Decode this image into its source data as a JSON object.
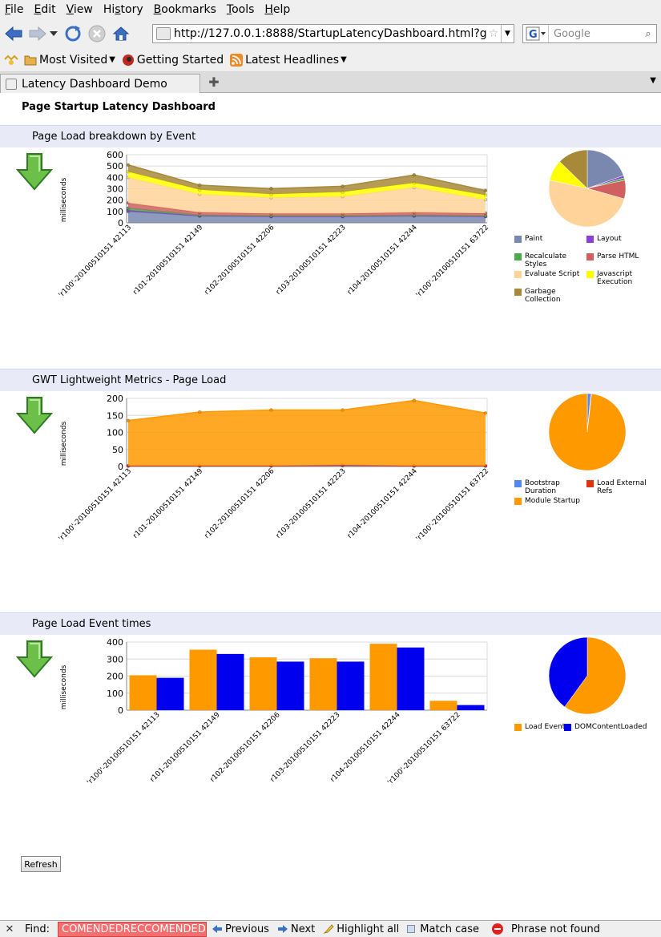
{
  "browser": {
    "menu": [
      "File",
      "Edit",
      "View",
      "History",
      "Bookmarks",
      "Tools",
      "Help"
    ],
    "menu_access_keys": [
      "F",
      "E",
      "V",
      "s",
      "B",
      "T",
      "H"
    ],
    "url": "http://127.0.0.1:8888/StartupLatencyDashboard.html?gwt.co",
    "search_placeholder": "Google",
    "bookmarks": [
      "Most Visited",
      "Getting Started",
      "Latest Headlines"
    ],
    "tab_title": "Latency Dashboard Demo"
  },
  "page": {
    "title": "Page Startup Latency Dashboard",
    "refresh_label": "Refresh"
  },
  "colors": {
    "section_header_bg": "#e8eaf8",
    "arrow_green": "#4caa3a",
    "orange": "#ff9900",
    "blue": "#0000ee"
  },
  "sections": [
    {
      "title": "Page Load breakdown by Event",
      "ylabel": "milliseconds"
    },
    {
      "title": "GWT Lightweight Metrics - Page Load",
      "ylabel": "milliseconds"
    },
    {
      "title": "Page Load Event times",
      "ylabel": "milliseconds"
    }
  ],
  "chart_data": [
    {
      "type": "area",
      "categories": [
        "'r100'-20100510151 42113",
        "r101-20100510151 42149",
        "r102-20100510151 42206",
        "r103-20100510151 42223",
        "r104-20100510151 42244",
        "'r100'-20100510151 63722"
      ],
      "ylim": [
        0,
        600
      ],
      "yticks": [
        0,
        100,
        200,
        300,
        400,
        500,
        600
      ],
      "ylabel": "milliseconds",
      "series": [
        {
          "name": "Paint",
          "color": "#7a88b0",
          "values": [
            100,
            60,
            55,
            55,
            60,
            55
          ]
        },
        {
          "name": "Layout",
          "color": "#8a3fd6",
          "values": [
            10,
            2,
            2,
            2,
            2,
            2
          ]
        },
        {
          "name": "Recalculate Styles",
          "color": "#4caa4c",
          "values": [
            20,
            5,
            5,
            5,
            5,
            5
          ]
        },
        {
          "name": "Parse HTML",
          "color": "#d06060",
          "values": [
            45,
            25,
            20,
            20,
            25,
            22
          ]
        },
        {
          "name": "Evaluate Script",
          "color": "#ffd39a",
          "values": [
            225,
            160,
            140,
            150,
            220,
            120
          ]
        },
        {
          "name": "Javascript Execution",
          "color": "#ffff00",
          "values": [
            50,
            40,
            30,
            40,
            40,
            40
          ]
        },
        {
          "name": "Garbage Collection",
          "color": "#a8893a",
          "values": [
            60,
            40,
            50,
            50,
            70,
            40
          ]
        }
      ],
      "pie": {
        "values": [
          20,
          1,
          1,
          8,
          50,
          9,
          13
        ]
      }
    },
    {
      "type": "area",
      "categories": [
        "'r100'-20100510151 42113",
        "r101-20100510151 42149",
        "r102-20100510151 42206",
        "r103-20100510151 42223",
        "r104-20100510151 42244",
        "'r100'-20100510151 63722"
      ],
      "ylim": [
        0,
        200
      ],
      "yticks": [
        0,
        50,
        100,
        150,
        200
      ],
      "ylabel": "milliseconds",
      "series": [
        {
          "name": "Bootstrap Duration",
          "color": "#5588ee",
          "values": [
            1,
            1,
            1,
            2,
            1,
            1
          ]
        },
        {
          "name": "Load External Refs",
          "color": "#dd3311",
          "values": [
            1,
            1,
            1,
            2,
            1,
            1
          ]
        },
        {
          "name": "Module Startup",
          "color": "#ff9900",
          "values": [
            133,
            158,
            164,
            162,
            192,
            155
          ]
        }
      ],
      "pie": {
        "values": [
          1.5,
          0.3,
          98.2
        ]
      }
    },
    {
      "type": "bar",
      "categories": [
        "'r100'-20100510151 42113",
        "r101-20100510151 42149",
        "r102-20100510151 42206",
        "r103-20100510151 42223",
        "r104-20100510151 42244",
        "'r100'-20100510151 63722"
      ],
      "ylim": [
        0,
        400
      ],
      "yticks": [
        0,
        100,
        200,
        300,
        400
      ],
      "ylabel": "milliseconds",
      "series": [
        {
          "name": "Load Event",
          "color": "#ff9900",
          "values": [
            205,
            355,
            310,
            305,
            390,
            55
          ]
        },
        {
          "name": "DOMContentLoaded",
          "color": "#0000ee",
          "values": [
            190,
            330,
            285,
            285,
            368,
            30
          ]
        }
      ],
      "pie": {
        "values": [
          60,
          40
        ]
      }
    }
  ],
  "findbar": {
    "label": "Find:",
    "query": "COMENDEDRECCOMENDED",
    "previous": "Previous",
    "next": "Next",
    "highlight_all": "Highlight all",
    "match_case": "Match case",
    "status": "Phrase not found"
  }
}
